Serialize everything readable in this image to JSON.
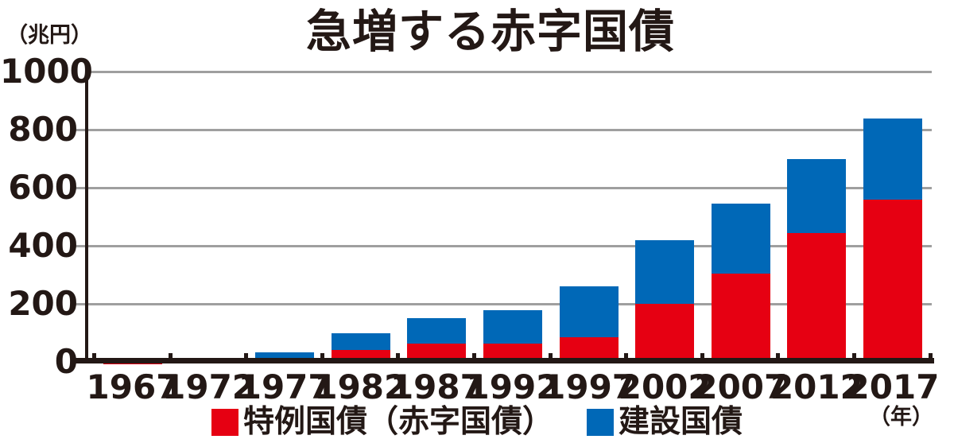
{
  "title": "急増する赤字国債",
  "y_axis_unit": "（兆円）",
  "x_axis_unit": "（年）",
  "colors": {
    "deficit_red": "#e60012",
    "construction_blue": "#0068b7",
    "grid_gray": "#9f9f9f",
    "axis_black": "#231815"
  },
  "legend": {
    "items": [
      {
        "label": "特例国債（赤字国債）",
        "color": "#e60012"
      },
      {
        "label": "建設国債",
        "color": "#0068b7"
      }
    ]
  },
  "chart_data": {
    "type": "bar",
    "stacked": true,
    "title": "急増する赤字国債",
    "unit": "兆円",
    "categories": [
      "1967",
      "1972",
      "1977",
      "1982",
      "1987",
      "1992",
      "1997",
      "2002",
      "2007",
      "2012",
      "2017"
    ],
    "series": [
      {
        "name": "特例国債（赤字国債）",
        "color": "#e60012",
        "values": [
          2,
          5,
          10,
          40,
          62,
          64,
          85,
          200,
          305,
          445,
          560
        ]
      },
      {
        "name": "建設国債",
        "color": "#0068b7",
        "values": [
          2,
          5,
          22,
          58,
          90,
          114,
          175,
          220,
          240,
          255,
          278
        ]
      }
    ],
    "totals": [
      4,
      10,
      32,
      98,
      152,
      178,
      260,
      420,
      545,
      700,
      838
    ],
    "ylim": [
      0,
      1000
    ],
    "yticks": [
      0,
      200,
      400,
      600,
      800,
      1000
    ],
    "grid": true,
    "legend_position": "bottom"
  }
}
